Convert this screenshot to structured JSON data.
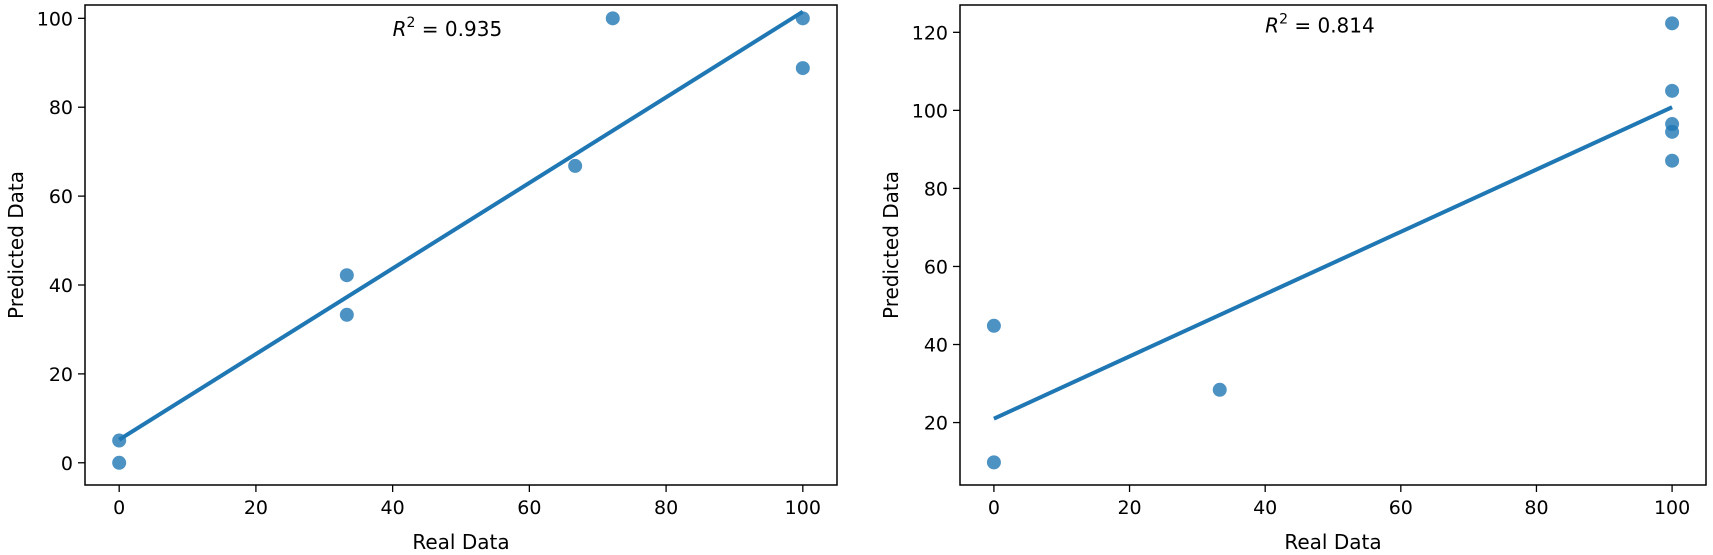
{
  "chart_data": [
    {
      "type": "scatter",
      "xlabel": "Real Data",
      "ylabel": "Predicted Data",
      "xlim": [
        -5,
        105
      ],
      "ylim": [
        -5,
        103
      ],
      "x_ticks": [
        0,
        20,
        40,
        60,
        80,
        100
      ],
      "y_ticks": [
        0,
        20,
        40,
        60,
        80,
        100
      ],
      "x_tick_labels": [
        "0",
        "20",
        "40",
        "60",
        "80",
        "100"
      ],
      "y_tick_labels": [
        "0",
        "20",
        "40",
        "60",
        "80",
        "100"
      ],
      "grid": false,
      "annotation": {
        "prefix": "R",
        "superscript": "2",
        "suffix": " = 0.935",
        "x": 40,
        "y": 96
      },
      "points": [
        {
          "x": 0,
          "y": 5
        },
        {
          "x": 0,
          "y": 0
        },
        {
          "x": 33.3,
          "y": 42.2
        },
        {
          "x": 33.3,
          "y": 33.3
        },
        {
          "x": 66.7,
          "y": 66.8
        },
        {
          "x": 72.2,
          "y": 100
        },
        {
          "x": 100,
          "y": 100
        },
        {
          "x": 100,
          "y": 88.8
        }
      ],
      "fit_line": {
        "x": [
          0,
          100
        ],
        "y": [
          5.2,
          101.5
        ]
      },
      "color": "#1f77b4"
    },
    {
      "type": "scatter",
      "xlabel": "Real Data",
      "ylabel": "Predicted Data",
      "xlim": [
        -5,
        105
      ],
      "ylim": [
        4,
        127
      ],
      "x_ticks": [
        0,
        20,
        40,
        60,
        80,
        100
      ],
      "y_ticks": [
        20,
        40,
        60,
        80,
        100,
        120
      ],
      "x_tick_labels": [
        "0",
        "20",
        "40",
        "60",
        "80",
        "100"
      ],
      "y_tick_labels": [
        "20",
        "40",
        "60",
        "80",
        "100",
        "120"
      ],
      "grid": false,
      "annotation": {
        "prefix": "R",
        "superscript": "2",
        "suffix": " = 0.814",
        "x": 40,
        "y": 120
      },
      "points": [
        {
          "x": 0,
          "y": 44.8
        },
        {
          "x": 0,
          "y": 9.8
        },
        {
          "x": 33.3,
          "y": 28.4
        },
        {
          "x": 100,
          "y": 122.3
        },
        {
          "x": 100,
          "y": 105
        },
        {
          "x": 100,
          "y": 96.5
        },
        {
          "x": 100,
          "y": 94.5
        },
        {
          "x": 100,
          "y": 87.1
        }
      ],
      "fit_line": {
        "x": [
          0,
          100
        ],
        "y": [
          21.0,
          100.8
        ]
      },
      "color": "#1f77b4"
    }
  ]
}
